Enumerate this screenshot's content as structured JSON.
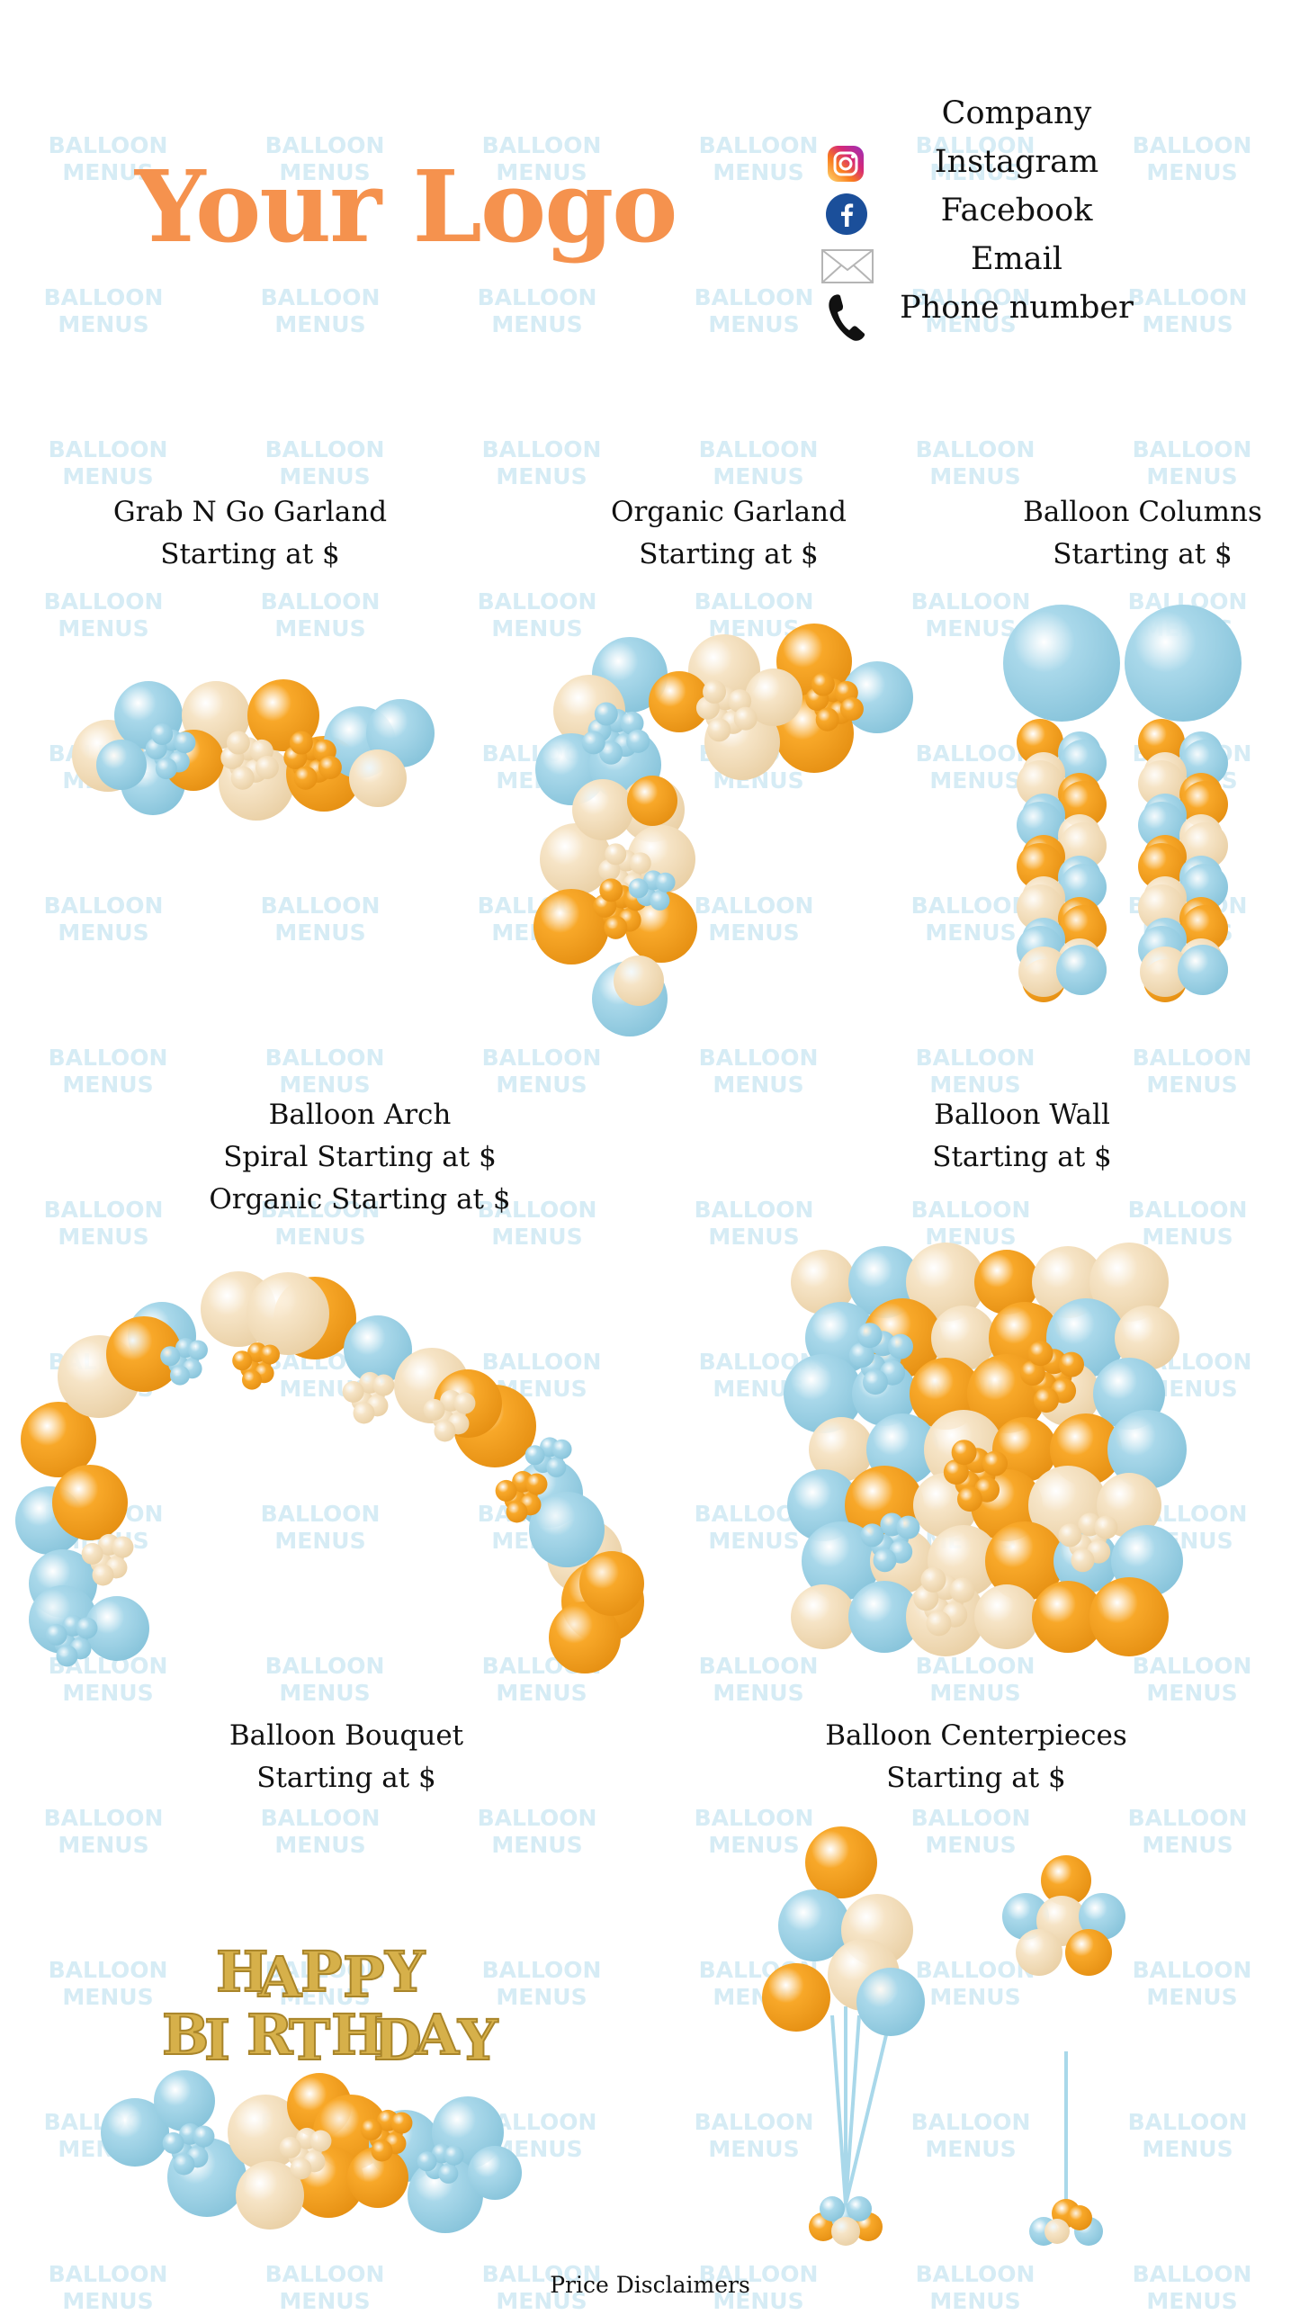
{
  "watermark_text": [
    "BALLOON",
    "MENUS"
  ],
  "logo_text": "Your Logo",
  "contact": {
    "company": "Company",
    "instagram": "Instagram",
    "facebook": "Facebook",
    "email": "Email",
    "phone": "Phone number"
  },
  "icons": {
    "instagram": "instagram-icon",
    "facebook": "facebook-icon",
    "email": "envelope-icon",
    "phone": "phone-icon"
  },
  "products": [
    {
      "name": "Grab N Go Garland",
      "prices": [
        "Starting at $"
      ]
    },
    {
      "name": "Organic Garland",
      "prices": [
        "Starting at $"
      ]
    },
    {
      "name": "Balloon Columns",
      "prices": [
        "Starting at $"
      ]
    },
    {
      "name": "Balloon Arch",
      "prices": [
        "Spiral Starting at $",
        "Organic Starting at $"
      ]
    },
    {
      "name": "Balloon Wall",
      "prices": [
        "Starting at $"
      ]
    },
    {
      "name": "Balloon Bouquet",
      "prices": [
        "Starting at $"
      ]
    },
    {
      "name": "Balloon  Centerpieces",
      "prices": [
        "Starting at $"
      ]
    }
  ],
  "foil_letters": [
    "HAPPY",
    "BIRTHDAY"
  ],
  "footer": "Price Disclaimers",
  "colors": {
    "orange": "#f8a829",
    "blue": "#a9d8ea",
    "cream": "#f6e4c6",
    "logo": "#f5924e",
    "watermark": "#d6ecf5",
    "gold": "#d6b04a"
  }
}
